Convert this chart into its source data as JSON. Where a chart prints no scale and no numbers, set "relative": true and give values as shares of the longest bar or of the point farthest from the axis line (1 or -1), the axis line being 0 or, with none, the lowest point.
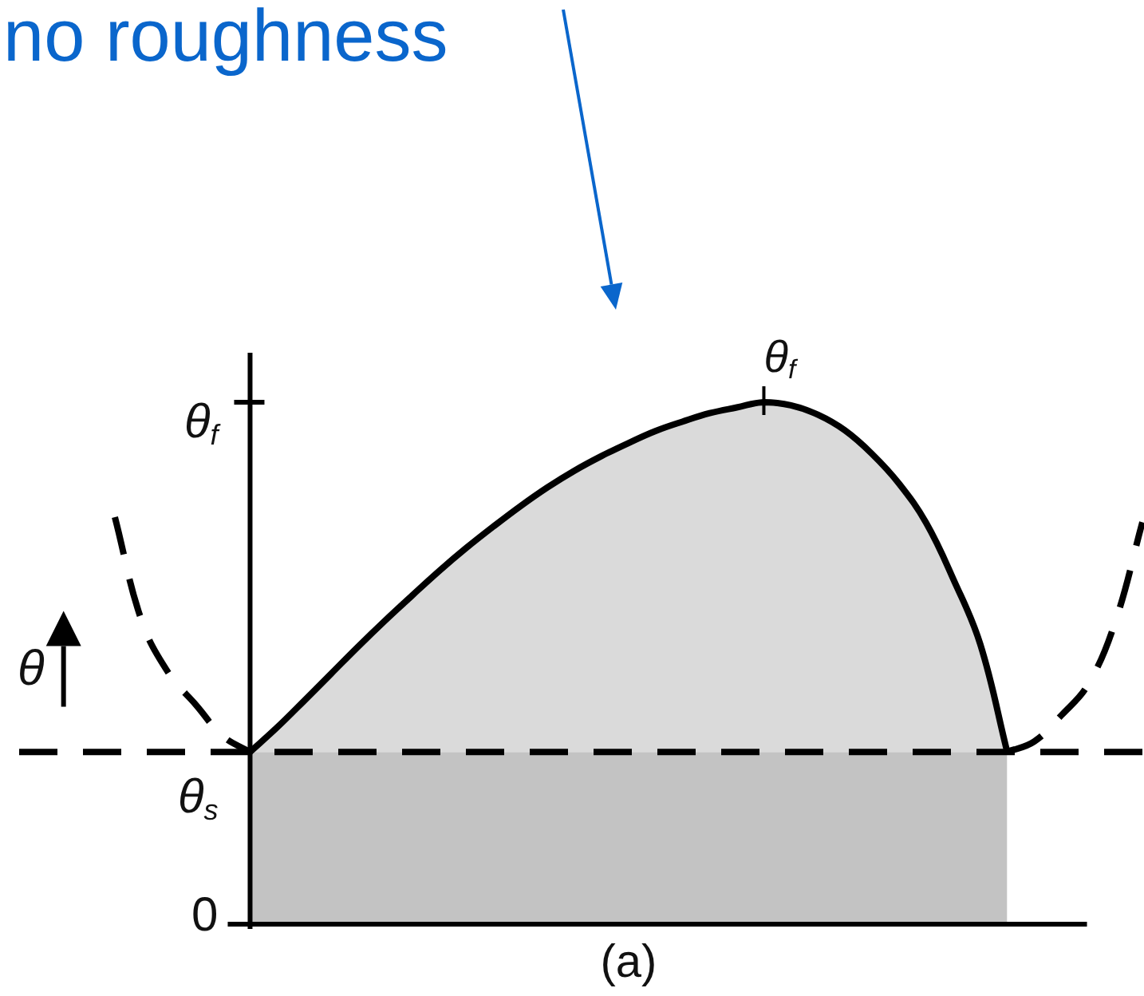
{
  "chart_data": {
    "type": "area",
    "relative": true,
    "categories": [
      null,
      null,
      null,
      null,
      null,
      null,
      null,
      null,
      null,
      null,
      null,
      null,
      null,
      null,
      null,
      null,
      null,
      null,
      null,
      null,
      null,
      null,
      null,
      null,
      null,
      null,
      null,
      null,
      null,
      null,
      null,
      null,
      null,
      null,
      null,
      null,
      null,
      null,
      null
    ],
    "series": [
      {
        "color": "#c3c3c3",
        "values": [
          null,
          null,
          null,
          null,
          null,
          0.33,
          0.33,
          0.33,
          0.33,
          0.33,
          0.33,
          0.33,
          0.33,
          0.33,
          0.33,
          0.33,
          0.33,
          0.33,
          0.33,
          0.33,
          0.33,
          0.33,
          0.33,
          0.33,
          0.33,
          0.33,
          0.33,
          0.33,
          0.33,
          0.33,
          0.33,
          0.33,
          0.33,
          0.33,
          null,
          null,
          null,
          null,
          null
        ]
      },
      {
        "color": "#dadada",
        "line_style": "solid",
        "values": [
          null,
          null,
          null,
          null,
          null,
          0.33,
          0.377,
          0.428,
          0.48,
          0.532,
          0.582,
          0.63,
          0.677,
          0.721,
          0.762,
          0.801,
          0.837,
          0.869,
          0.897,
          0.922,
          0.945,
          0.963,
          0.979,
          0.99,
          1.0,
          0.994,
          0.976,
          0.946,
          0.901,
          0.844,
          0.769,
          0.662,
          0.537,
          0.33,
          null,
          null,
          null,
          null,
          null
        ]
      },
      {
        "type": "line",
        "color": "#000000",
        "line_style": "dashed",
        "values": [
          0.78,
          0.58,
          0.48,
          0.42,
          0.36,
          0.33,
          null,
          null,
          null,
          null,
          null,
          null,
          null,
          null,
          null,
          null,
          null,
          null,
          null,
          null,
          null,
          null,
          null,
          null,
          null,
          null,
          null,
          null,
          null,
          null,
          null,
          null,
          null,
          null,
          null,
          null,
          null,
          null,
          null
        ]
      },
      {
        "type": "line",
        "color": "#000000",
        "line_style": "dashed",
        "values": [
          null,
          null,
          null,
          null,
          null,
          null,
          null,
          null,
          null,
          null,
          null,
          null,
          null,
          null,
          null,
          null,
          null,
          null,
          null,
          null,
          null,
          null,
          null,
          null,
          null,
          null,
          null,
          null,
          null,
          null,
          null,
          null,
          null,
          0.33,
          0.35,
          0.4,
          0.46,
          0.58,
          0.77
        ]
      }
    ],
    "ylabel": "θ",
    "ref_lines": [
      {
        "axis": "y",
        "value": 0.33,
        "color": "#000000",
        "line_style": "dashed"
      }
    ],
    "annotations": [
      "no roughness",
      "(a)",
      "θ$_{f}$",
      "θ$_{f}$",
      "θ$_{s}$",
      "0"
    ],
    "tick_labels": "y",
    "marker": "none"
  }
}
